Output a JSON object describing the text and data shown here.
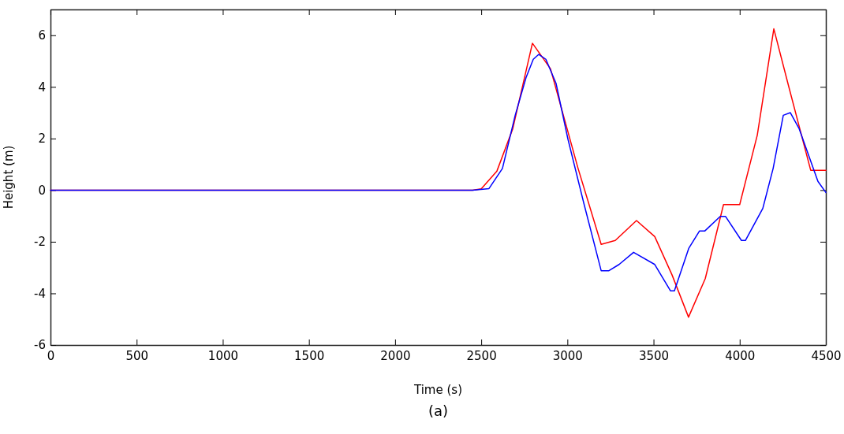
{
  "chart_data": {
    "type": "line",
    "xlabel": "Time (s)",
    "ylabel": "Height (m)",
    "annotations": [
      "(a)"
    ],
    "xlim": [
      0,
      4500
    ],
    "ylim": [
      -6,
      7
    ],
    "xticks": [
      0,
      500,
      1000,
      1500,
      2000,
      2500,
      3000,
      3500,
      4000,
      4500
    ],
    "yticks": [
      -6,
      -4,
      -2,
      0,
      2,
      4,
      6
    ],
    "grid": false,
    "line_style": "solid",
    "marker": "none",
    "series": [
      {
        "color": "#ff0000",
        "x": [
          0,
          2450,
          2500,
          2591,
          2683,
          2797,
          2902,
          3062,
          3196,
          3278,
          3401,
          3507,
          3607,
          3703,
          3800,
          3906,
          4000,
          4102,
          4198,
          4285,
          4412,
          4500
        ],
        "values": [
          0,
          0,
          0.05,
          0.74,
          2.38,
          5.69,
          4.7,
          0.84,
          -2.1,
          -1.95,
          -1.18,
          -1.8,
          -3.28,
          -4.92,
          -3.43,
          -0.56,
          -0.56,
          2.13,
          6.25,
          4.0,
          0.77,
          0.77
        ]
      },
      {
        "color": "#0000ff",
        "x": [
          0,
          2450,
          2545,
          2623,
          2697,
          2760,
          2802,
          2834,
          2875,
          2934,
          3003,
          3095,
          3196,
          3241,
          3300,
          3384,
          3507,
          3598,
          3621,
          3704,
          3767,
          3798,
          3887,
          3918,
          4010,
          4033,
          4134,
          4194,
          4253,
          4294,
          4345,
          4454,
          4500
        ],
        "values": [
          0,
          0,
          0.06,
          0.84,
          2.9,
          4.36,
          5.07,
          5.26,
          5.07,
          4.14,
          1.98,
          -0.5,
          -3.12,
          -3.12,
          -2.88,
          -2.41,
          -2.88,
          -3.9,
          -3.9,
          -2.26,
          -1.58,
          -1.58,
          -1.02,
          -1.02,
          -1.95,
          -1.95,
          -0.71,
          0.84,
          2.9,
          3.0,
          2.38,
          0.34,
          -0.09
        ]
      }
    ]
  }
}
